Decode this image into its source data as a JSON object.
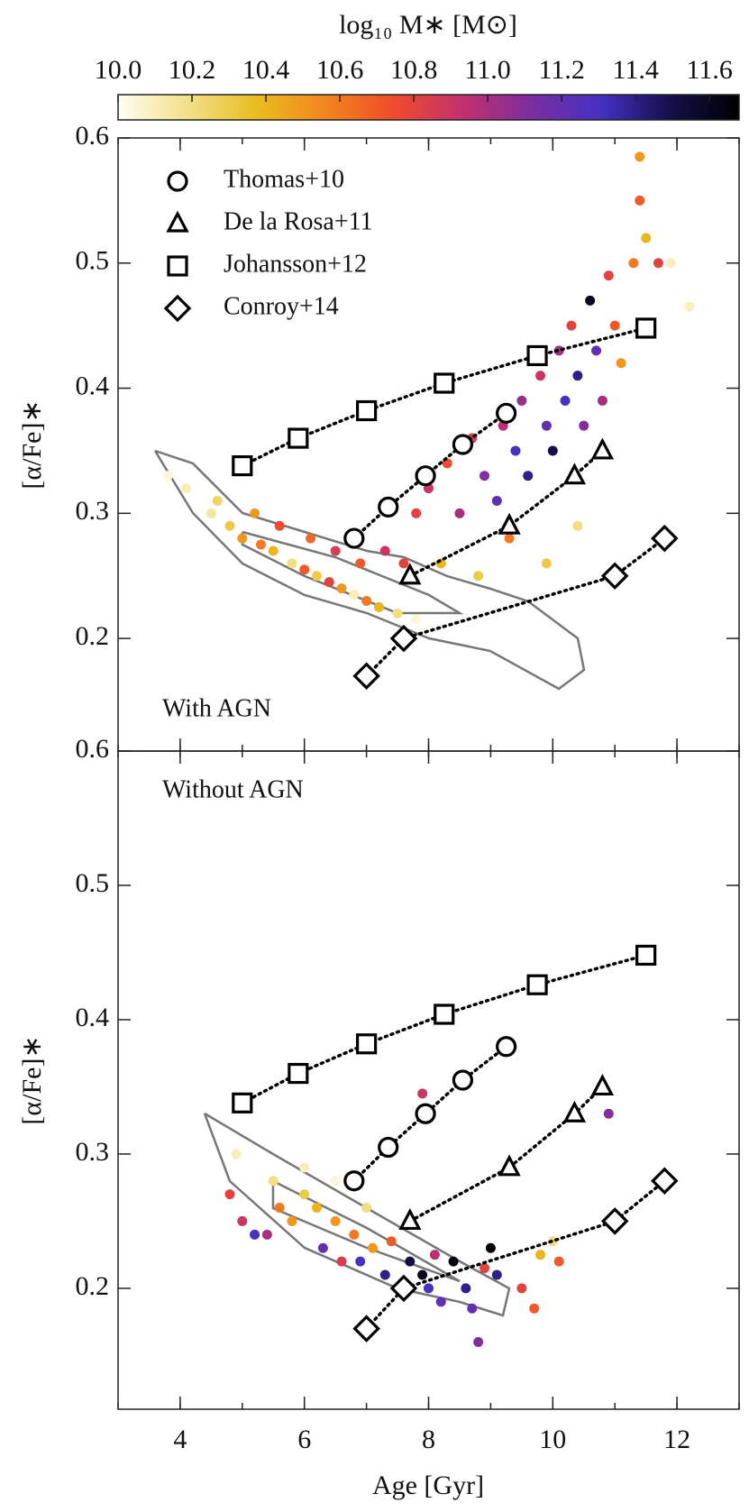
{
  "chart_data": {
    "type": "scatter",
    "xlabel": "Age [Gyr]",
    "xlim": [
      3,
      13
    ],
    "xticks": [
      4,
      6,
      8,
      10,
      12
    ],
    "legend": "upper left",
    "colorbar": {
      "label": "log₁₀ M∗ [M⊙]",
      "lim": [
        10,
        11.68
      ],
      "ticks": [
        {
          "value": 10,
          "label": "10.0"
        },
        10.2,
        10.4,
        10.6,
        10.8,
        {
          "value": 11,
          "label": "11.0"
        },
        11.2,
        11.4,
        11.6
      ],
      "colormap": [
        "#fffef2",
        "#f3e08a",
        "#e9bd1f",
        "#f2861e",
        "#f04b2c",
        "#c2306e",
        "#7a2ea0",
        "#4630c4",
        "#14104a",
        "#000000"
      ]
    },
    "series": [
      {
        "name": "Thomas+10",
        "marker": "circle",
        "x": [
          6.8,
          7.35,
          7.95,
          8.55,
          9.25
        ],
        "values": [
          0.28,
          0.305,
          0.33,
          0.355,
          0.38
        ]
      },
      {
        "name": "De la Rosa+11",
        "marker": "triangle",
        "x": [
          7.7,
          9.3,
          10.35,
          10.8
        ],
        "values": [
          0.25,
          0.29,
          0.33,
          0.35
        ]
      },
      {
        "name": "Johansson+12",
        "marker": "square",
        "x": [
          5.0,
          5.9,
          7.0,
          8.25,
          9.75,
          11.5
        ],
        "values": [
          0.338,
          0.36,
          0.382,
          0.404,
          0.426,
          0.448
        ]
      },
      {
        "name": "Conroy+14",
        "marker": "diamond",
        "x": [
          7.0,
          7.6,
          11.0,
          11.8
        ],
        "values": [
          0.17,
          0.2,
          0.25,
          0.28
        ]
      }
    ],
    "panels": [
      {
        "annotation": "With AGN",
        "ylabel": "[α/Fe]∗",
        "ylim": [
          0.11,
          0.6
        ],
        "yticks": [
          0.2,
          0.3,
          0.4,
          0.5,
          0.6
        ],
        "points": {
          "x": [
            3.8,
            4.1,
            4.5,
            4.8,
            5.0,
            5.3,
            5.5,
            5.8,
            6.0,
            6.2,
            6.4,
            6.6,
            6.8,
            7.0,
            7.2,
            7.5,
            7.8,
            5.6,
            6.1,
            6.5,
            6.9,
            7.3,
            7.6,
            5.2,
            4.6,
            7.8,
            8.0,
            8.3,
            8.5,
            8.7,
            8.9,
            9.1,
            9.2,
            9.4,
            9.5,
            9.6,
            9.8,
            9.9,
            10.0,
            10.1,
            10.2,
            10.3,
            10.4,
            10.5,
            10.6,
            10.7,
            10.8,
            10.9,
            11.0,
            11.1,
            11.3,
            11.4,
            11.5,
            11.7,
            11.9,
            12.2,
            8.2,
            8.8,
            9.3,
            9.9,
            10.4,
            11.4
          ],
          "values": [
            0.33,
            0.32,
            0.3,
            0.29,
            0.28,
            0.275,
            0.27,
            0.26,
            0.255,
            0.25,
            0.245,
            0.24,
            0.235,
            0.23,
            0.225,
            0.22,
            0.215,
            0.29,
            0.28,
            0.27,
            0.26,
            0.27,
            0.26,
            0.3,
            0.31,
            0.3,
            0.32,
            0.34,
            0.3,
            0.36,
            0.33,
            0.31,
            0.37,
            0.35,
            0.39,
            0.33,
            0.41,
            0.37,
            0.35,
            0.43,
            0.39,
            0.45,
            0.41,
            0.37,
            0.47,
            0.43,
            0.39,
            0.49,
            0.45,
            0.42,
            0.5,
            0.55,
            0.52,
            0.5,
            0.5,
            0.465,
            0.26,
            0.25,
            0.28,
            0.26,
            0.29,
            0.585
          ],
          "mass": [
            10.05,
            10.1,
            10.15,
            10.3,
            10.5,
            10.6,
            10.4,
            10.2,
            10.7,
            10.3,
            10.8,
            10.5,
            10.1,
            10.6,
            10.4,
            10.2,
            10.05,
            10.75,
            10.65,
            10.85,
            10.7,
            10.9,
            10.8,
            10.5,
            10.25,
            10.8,
            10.9,
            10.75,
            11.0,
            10.85,
            11.1,
            11.2,
            10.95,
            11.3,
            11.05,
            11.4,
            10.9,
            11.2,
            11.5,
            11.0,
            11.3,
            10.8,
            11.4,
            11.1,
            11.6,
            11.2,
            11.0,
            10.8,
            10.7,
            10.5,
            10.6,
            10.7,
            10.4,
            10.8,
            10.1,
            10.1,
            10.4,
            10.3,
            10.6,
            10.3,
            10.2,
            10.5
          ]
        }
      },
      {
        "annotation": "Without AGN",
        "ylabel": "[α/Fe]∗",
        "ylim": [
          0.11,
          0.6
        ],
        "yticks": [
          0.2,
          0.3,
          0.4,
          0.5,
          0.6
        ],
        "points": {
          "x": [
            4.9,
            4.8,
            5.0,
            5.2,
            5.4,
            5.6,
            5.8,
            6.0,
            6.2,
            6.3,
            6.5,
            6.6,
            6.8,
            6.9,
            7.1,
            7.3,
            7.4,
            7.5,
            7.7,
            7.9,
            8.0,
            8.1,
            8.2,
            8.4,
            8.6,
            8.7,
            8.8,
            8.9,
            9.0,
            9.1,
            9.5,
            9.7,
            10.1,
            9.8,
            10.0,
            7.9,
            10.9,
            6.0,
            6.5,
            7.0,
            5.5
          ],
          "values": [
            0.3,
            0.27,
            0.25,
            0.24,
            0.24,
            0.26,
            0.25,
            0.27,
            0.26,
            0.23,
            0.25,
            0.22,
            0.24,
            0.22,
            0.23,
            0.21,
            0.235,
            0.2,
            0.22,
            0.21,
            0.2,
            0.225,
            0.19,
            0.22,
            0.2,
            0.185,
            0.16,
            0.215,
            0.23,
            0.21,
            0.2,
            0.185,
            0.22,
            0.225,
            0.235,
            0.345,
            0.33,
            0.29,
            0.28,
            0.26,
            0.28
          ],
          "mass": [
            10.1,
            10.8,
            10.9,
            11.3,
            11.0,
            10.6,
            10.5,
            10.3,
            10.4,
            11.2,
            10.5,
            10.85,
            10.6,
            11.3,
            10.5,
            11.4,
            10.7,
            11.1,
            11.5,
            11.6,
            11.3,
            10.95,
            11.2,
            11.65,
            11.4,
            11.2,
            11.1,
            10.8,
            11.68,
            11.4,
            10.8,
            10.7,
            10.7,
            10.4,
            10.2,
            10.9,
            11.1,
            10.1,
            10.05,
            10.2,
            10.2
          ]
        }
      }
    ]
  }
}
